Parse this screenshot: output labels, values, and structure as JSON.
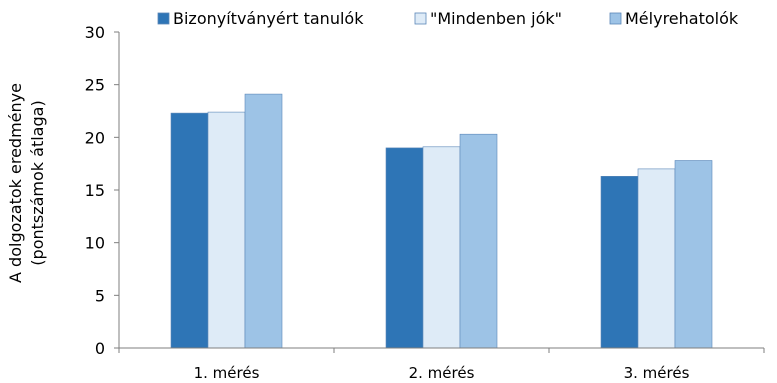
{
  "chart_data": {
    "type": "bar",
    "title": "",
    "xlabel": "",
    "ylabel_lines": [
      "A dolgozatok eredménye",
      "(pontszámok átlaga)"
    ],
    "ylim": [
      0,
      30
    ],
    "yticks": [
      0,
      5,
      10,
      15,
      20,
      25,
      30
    ],
    "categories": [
      "1. mérés",
      "2. mérés",
      "3. mérés"
    ],
    "series": [
      {
        "name": "Bizonyítványért tanulók",
        "values": [
          22.3,
          19.0,
          16.3
        ],
        "color": "#2E75B6"
      },
      {
        "name": "\"Mindenben jók\"",
        "values": [
          22.4,
          19.1,
          17.0
        ],
        "color": "#DEEBF7"
      },
      {
        "name": "Mélyrehatolók",
        "values": [
          24.1,
          20.3,
          17.8
        ],
        "color": "#9DC3E6"
      }
    ],
    "grid": false,
    "legend_position": "top"
  }
}
